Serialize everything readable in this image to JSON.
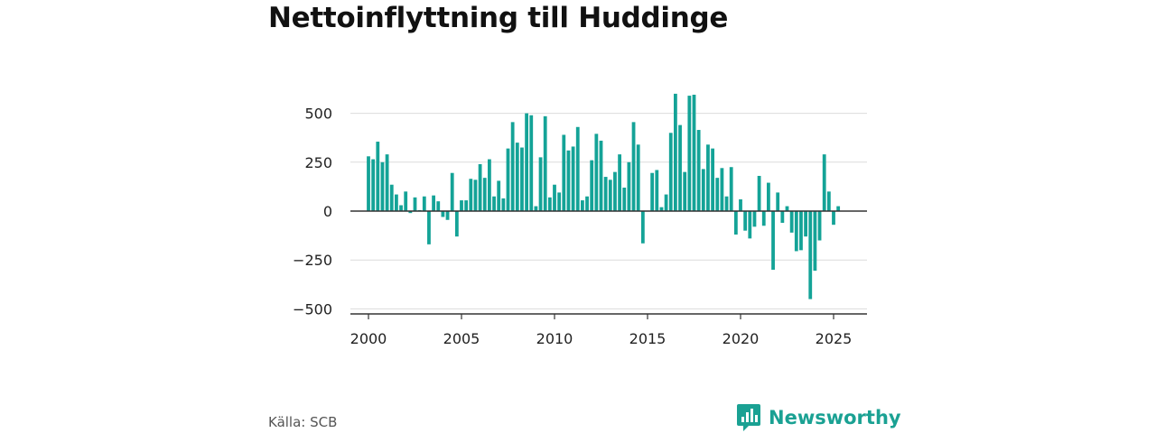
{
  "title": "Nettoinflyttning till Huddinge",
  "source": "Källa: SCB",
  "brand": {
    "name": "Newsworthy",
    "icon": "newsworthy-logo-icon",
    "color": "#1aa193"
  },
  "chart_data": {
    "type": "bar",
    "bar_color": "#14a397",
    "ylim": [
      -520,
      620
    ],
    "yticks": [
      500,
      250,
      0,
      -250,
      -500
    ],
    "ytick_labels": [
      "500",
      "250",
      "0",
      "−250",
      "−500"
    ],
    "xticks": [
      2000,
      2005,
      2010,
      2015,
      2020,
      2025
    ],
    "xtick_labels": [
      "2000",
      "2005",
      "2010",
      "2015",
      "2020",
      "2025"
    ],
    "x_unit": "year",
    "grid": true,
    "x": [
      2000.0,
      2000.25,
      2000.5,
      2000.75,
      2001.0,
      2001.25,
      2001.5,
      2001.75,
      2002.0,
      2002.25,
      2002.5,
      2002.75,
      2003.0,
      2003.25,
      2003.5,
      2003.75,
      2004.0,
      2004.25,
      2004.5,
      2004.75,
      2005.0,
      2005.25,
      2005.5,
      2005.75,
      2006.0,
      2006.25,
      2006.5,
      2006.75,
      2007.0,
      2007.25,
      2007.5,
      2007.75,
      2008.0,
      2008.25,
      2008.5,
      2008.75,
      2009.0,
      2009.25,
      2009.5,
      2009.75,
      2010.0,
      2010.25,
      2010.5,
      2010.75,
      2011.0,
      2011.25,
      2011.5,
      2011.75,
      2012.0,
      2012.25,
      2012.5,
      2012.75,
      2013.0,
      2013.25,
      2013.5,
      2013.75,
      2014.0,
      2014.25,
      2014.5,
      2014.75,
      2015.0,
      2015.25,
      2015.5,
      2015.75,
      2016.0,
      2016.25,
      2016.5,
      2016.75,
      2017.0,
      2017.25,
      2017.5,
      2017.75,
      2018.0,
      2018.25,
      2018.5,
      2018.75,
      2019.0,
      2019.25,
      2019.5,
      2019.75,
      2020.0,
      2020.25,
      2020.5,
      2020.75,
      2021.0,
      2021.25,
      2021.5,
      2021.75,
      2022.0,
      2022.25,
      2022.5,
      2022.75,
      2023.0,
      2023.25,
      2023.5,
      2023.75,
      2024.0,
      2024.25,
      2024.5,
      2024.75,
      2025.0,
      2025.25
    ],
    "values": [
      280,
      265,
      355,
      250,
      290,
      135,
      85,
      30,
      100,
      -10,
      70,
      5,
      75,
      -170,
      80,
      50,
      -30,
      -45,
      195,
      -130,
      55,
      55,
      165,
      160,
      240,
      170,
      265,
      75,
      155,
      65,
      320,
      455,
      350,
      325,
      500,
      490,
      25,
      275,
      485,
      70,
      135,
      95,
      390,
      310,
      330,
      430,
      55,
      75,
      260,
      395,
      360,
      175,
      160,
      200,
      290,
      120,
      250,
      455,
      340,
      -165,
      0,
      195,
      210,
      20,
      85,
      400,
      600,
      440,
      200,
      590,
      595,
      415,
      215,
      340,
      320,
      170,
      220,
      75,
      225,
      -120,
      60,
      -100,
      -140,
      -80,
      180,
      -75,
      145,
      -300,
      95,
      -60,
      25,
      -110,
      -205,
      -200,
      -130,
      -450,
      -305,
      -150,
      290,
      100,
      -70,
      25
    ]
  }
}
